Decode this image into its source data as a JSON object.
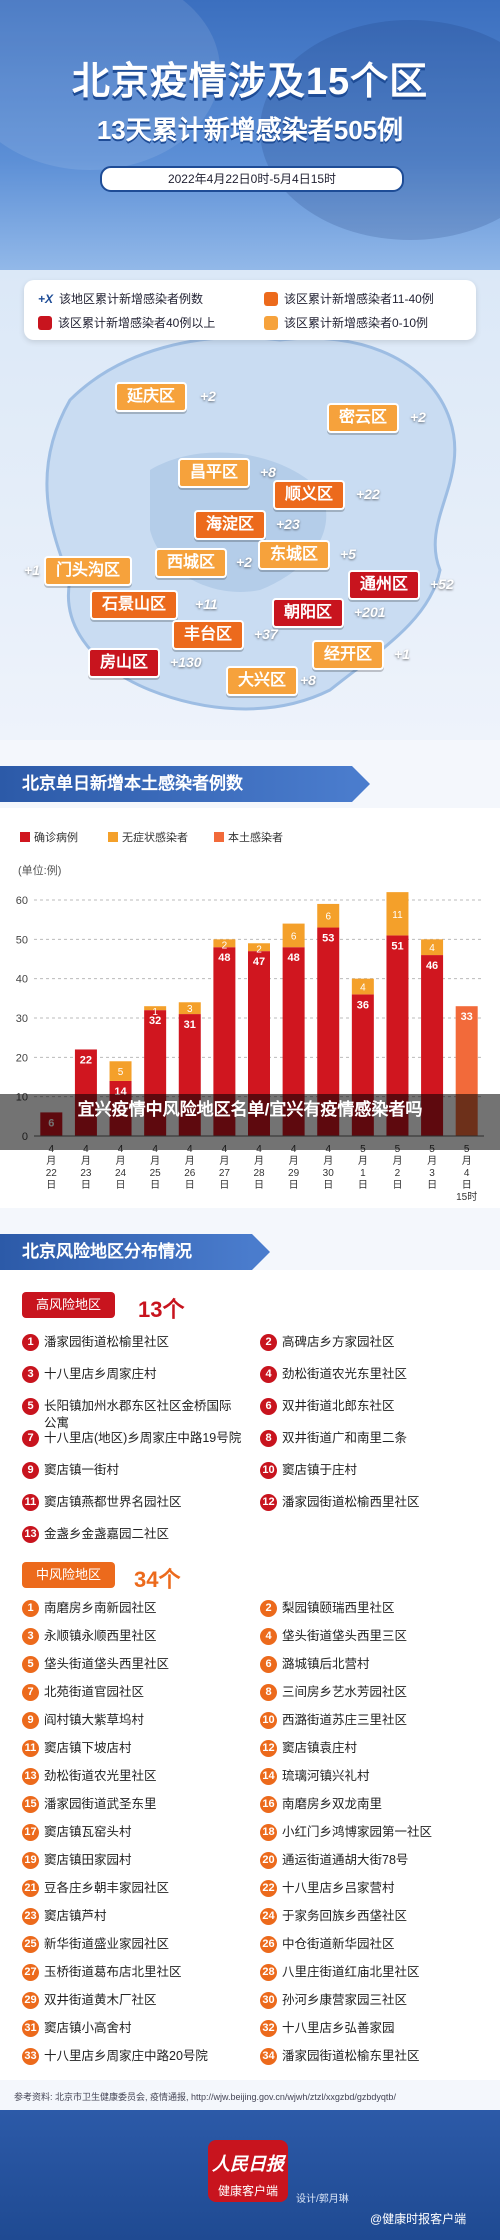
{
  "header": {
    "title": "北京疫情涉及15个区",
    "subtitle": "13天累计新增感染者505例",
    "date_range": "2022年4月22日0时-5月4日15时"
  },
  "map_legend": [
    {
      "label": "该地区累计新增感染者例数",
      "color": "#1e4c96",
      "icon": "plus-x-icon"
    },
    {
      "label": "该区累计新增感染者11-40例",
      "color": "#ec6a1c"
    },
    {
      "label": "该区累计新增感染者40例以上",
      "color": "#c8141e"
    },
    {
      "label": "该区累计新增感染者0-10例",
      "color": "#f6a23c"
    }
  ],
  "districts": [
    {
      "name": "延庆区",
      "count": "+2",
      "level": "low"
    },
    {
      "name": "密云区",
      "count": "+2",
      "level": "low"
    },
    {
      "name": "昌平区",
      "count": "+8",
      "level": "low"
    },
    {
      "name": "顺义区",
      "count": "+22",
      "level": "mid"
    },
    {
      "name": "海淀区",
      "count": "+23",
      "level": "mid"
    },
    {
      "name": "门头沟区",
      "count": "+1",
      "level": "low"
    },
    {
      "name": "西城区",
      "count": "+2",
      "level": "low"
    },
    {
      "name": "东城区",
      "count": "+5",
      "level": "low"
    },
    {
      "name": "通州区",
      "count": "+52",
      "level": "dark"
    },
    {
      "name": "石景山区",
      "count": "+11",
      "level": "mid"
    },
    {
      "name": "朝阳区",
      "count": "+201",
      "level": "dark"
    },
    {
      "name": "丰台区",
      "count": "+37",
      "level": "mid"
    },
    {
      "name": "经开区",
      "count": "+1",
      "level": "low"
    },
    {
      "name": "房山区",
      "count": "+130",
      "level": "dark"
    },
    {
      "name": "大兴区",
      "count": "+8",
      "level": "low"
    }
  ],
  "chart_section_title": "北京单日新增本土感染者例数",
  "overlay_text": "宜兴疫情中风险地区名单/宜兴有疫情感染者吗",
  "chart_data": {
    "type": "bar",
    "ylabel": "(单位:例)",
    "ylim": [
      0,
      60
    ],
    "yticks": [
      0,
      10,
      20,
      30,
      40,
      50,
      60
    ],
    "legend": [
      "确诊病例",
      "无症状感染者",
      "本土感染者"
    ],
    "colors": {
      "confirmed": "#d0161f",
      "asymptomatic": "#f4a02a",
      "local": "#f26a3a"
    },
    "categories": [
      "4月22日",
      "4月23日",
      "4月24日",
      "4月25日",
      "4月26日",
      "4月27日",
      "4月28日",
      "4月29日",
      "4月30日",
      "5月1日",
      "5月2日",
      "5月3日",
      "5月4日15时"
    ],
    "series": [
      {
        "name": "确诊病例",
        "values": [
          6,
          22,
          14,
          32,
          31,
          48,
          47,
          48,
          53,
          36,
          51,
          46,
          null
        ]
      },
      {
        "name": "无症状感染者",
        "values": [
          null,
          null,
          5,
          1,
          3,
          2,
          2,
          6,
          6,
          4,
          11,
          4,
          null
        ]
      },
      {
        "name": "本土感染者",
        "values": [
          null,
          null,
          null,
          null,
          null,
          null,
          null,
          null,
          null,
          null,
          null,
          null,
          33
        ]
      }
    ]
  },
  "risk_section_title": "北京风险地区分布情况",
  "high_risk": {
    "label": "高风险地区",
    "count": "13个",
    "items": [
      "潘家园街道松榆里社区",
      "高碑店乡方家园社区",
      "十八里店乡周家庄村",
      "劲松街道农光东里社区",
      "长阳镇加州水郡东区社区金桥国际公寓",
      "双井街道北郎东社区",
      "十八里店(地区)乡周家庄中路19号院",
      "双井街道广和南里二条",
      "窦店镇一街村",
      "窦店镇于庄村",
      "窦店镇燕都世界名园社区",
      "潘家园街道松榆西里社区",
      "金盏乡金盏嘉园二社区"
    ]
  },
  "mid_risk": {
    "label": "中风险地区",
    "count": "34个",
    "items": [
      "南磨房乡南新园社区",
      "梨园镇颐瑞西里社区",
      "永顺镇永顺西里社区",
      "垡头街道垡头西里三区",
      "垡头街道垡头西里社区",
      "潞城镇后北营村",
      "北苑街道官园社区",
      "三间房乡艺水芳园社区",
      "阎村镇大紫草坞村",
      "西潞街道苏庄三里社区",
      "窦店镇下坡店村",
      "窦店镇袁庄村",
      "劲松街道农光里社区",
      "琉璃河镇兴礼村",
      "潘家园街道武圣东里",
      "南磨房乡双龙南里",
      "窦店镇瓦窑头村",
      "小红门乡鸿博家园第一社区",
      "窦店镇田家园村",
      "通运街道通胡大街78号",
      "豆各庄乡朝丰家园社区",
      "十八里店乡吕家营村",
      "窦店镇芦村",
      "于家务回族乡西垡社区",
      "新华街道盛业家园社区",
      "中仓街道新华园社区",
      "玉桥街道葛布店北里社区",
      "八里庄街道红庙北里社区",
      "双井街道黄木厂社区",
      "孙河乡康营家园三社区",
      "窦店镇小高舍村",
      "十八里店乡弘善家园",
      "十八里店乡周家庄中路20号院",
      "潘家园街道松榆东里社区"
    ]
  },
  "source_text": "参考资料: 北京市卫生健康委员会, 疫情通报, http://wjw.beijing.gov.cn/wjwh/ztzl/xxgzbd/gzbdyqtb/",
  "footer": {
    "logo_line1": "人民日报",
    "logo_line2": "健康客户端",
    "designer": "设计/郭月琳",
    "watermark": "@健康时报客户端"
  }
}
